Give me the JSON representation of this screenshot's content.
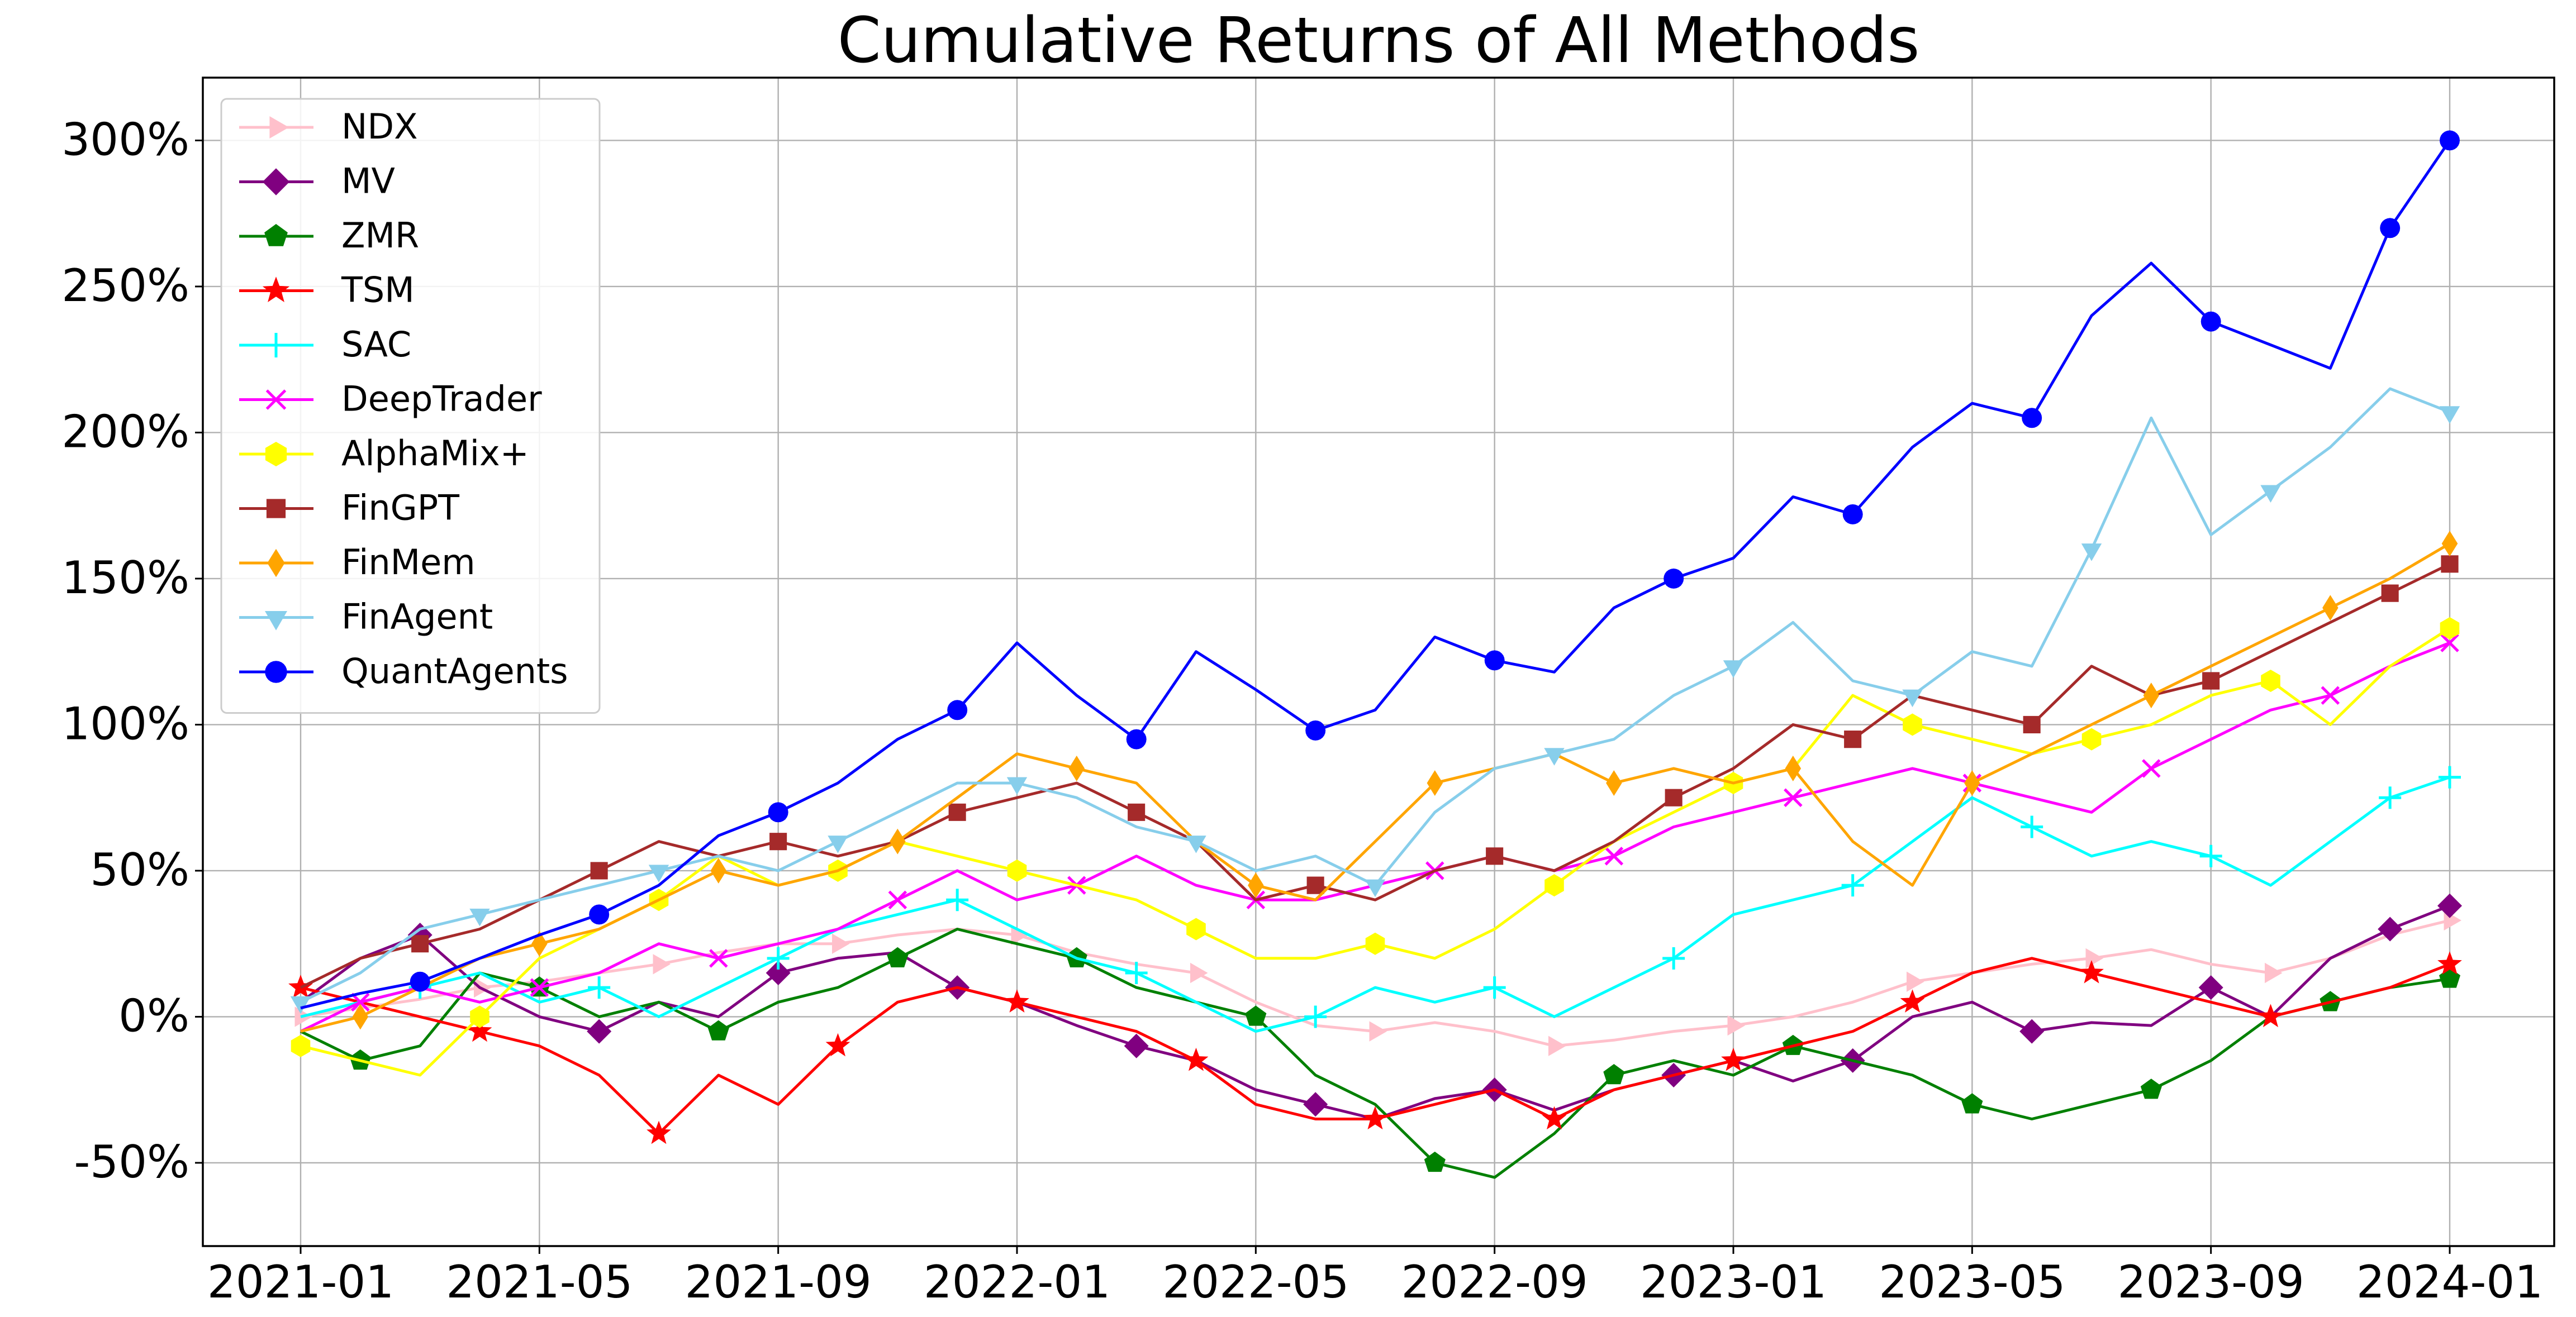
{
  "chart_data": {
    "type": "line",
    "title": "Cumulative Returns of All Methods",
    "x": [
      "2021-01",
      "2021-02",
      "2021-03",
      "2021-04",
      "2021-05",
      "2021-06",
      "2021-07",
      "2021-08",
      "2021-09",
      "2021-10",
      "2021-11",
      "2021-12",
      "2022-01",
      "2022-02",
      "2022-03",
      "2022-04",
      "2022-05",
      "2022-06",
      "2022-07",
      "2022-08",
      "2022-09",
      "2022-10",
      "2022-11",
      "2022-12",
      "2023-01",
      "2023-02",
      "2023-03",
      "2023-04",
      "2023-05",
      "2023-06",
      "2023-07",
      "2023-08",
      "2023-09",
      "2023-10",
      "2023-11",
      "2023-12",
      "2024-01"
    ],
    "xticks": [
      "2021-01",
      "2021-05",
      "2021-09",
      "2022-01",
      "2022-05",
      "2022-09",
      "2023-01",
      "2023-05",
      "2023-09",
      "2024-01"
    ],
    "ylim": [
      -78.5,
      321.5
    ],
    "yticks": [
      {
        "value": -50,
        "label": "-50%"
      },
      {
        "value": 0,
        "label": "0%"
      },
      {
        "value": 50,
        "label": "50%"
      },
      {
        "value": 100,
        "label": "100%"
      },
      {
        "value": 150,
        "label": "150%"
      },
      {
        "value": 200,
        "label": "200%"
      },
      {
        "value": 250,
        "label": "250%"
      },
      {
        "value": 300,
        "label": "300%"
      }
    ],
    "grid": true,
    "legend": "upper left",
    "series": [
      {
        "name": "NDX",
        "color": "#ffc0cb",
        "marker": "triangle-right",
        "values": [
          0,
          3,
          6,
          10,
          12,
          15,
          18,
          22,
          25,
          25,
          28,
          30,
          28,
          22,
          18,
          15,
          5,
          -3,
          -5,
          -2,
          -5,
          -10,
          -8,
          -5,
          -3,
          0,
          5,
          12,
          15,
          18,
          20,
          23,
          18,
          15,
          20,
          28,
          33
        ]
      },
      {
        "name": "MV",
        "color": "#800080",
        "marker": "diamond",
        "values": [
          5,
          20,
          28,
          10,
          0,
          -5,
          5,
          0,
          15,
          20,
          22,
          10,
          5,
          -3,
          -10,
          -15,
          -25,
          -30,
          -35,
          -28,
          -25,
          -32,
          -25,
          -20,
          -15,
          -22,
          -15,
          0,
          5,
          -5,
          -2,
          -3,
          10,
          0,
          20,
          30,
          38
        ]
      },
      {
        "name": "ZMR",
        "color": "#008000",
        "marker": "pentagon",
        "values": [
          -5,
          -15,
          -10,
          15,
          10,
          0,
          5,
          -5,
          5,
          10,
          20,
          30,
          25,
          20,
          10,
          5,
          0,
          -20,
          -30,
          -50,
          -55,
          -40,
          -20,
          -15,
          -20,
          -10,
          -15,
          -20,
          -30,
          -35,
          -30,
          -25,
          -15,
          0,
          5,
          10,
          13
        ]
      },
      {
        "name": "TSM",
        "color": "#ff0000",
        "marker": "star",
        "values": [
          10,
          5,
          0,
          -5,
          -10,
          -20,
          -40,
          -20,
          -30,
          -10,
          5,
          10,
          5,
          0,
          -5,
          -15,
          -30,
          -35,
          -35,
          -30,
          -25,
          -35,
          -25,
          -20,
          -15,
          -10,
          -5,
          5,
          15,
          20,
          15,
          10,
          5,
          0,
          5,
          10,
          18
        ]
      },
      {
        "name": "SAC",
        "color": "#00ffff",
        "marker": "plus",
        "values": [
          0,
          5,
          10,
          15,
          5,
          10,
          0,
          10,
          20,
          30,
          35,
          40,
          30,
          20,
          15,
          5,
          -5,
          0,
          10,
          5,
          10,
          0,
          10,
          20,
          35,
          40,
          45,
          60,
          75,
          65,
          55,
          60,
          55,
          45,
          60,
          75,
          82
        ]
      },
      {
        "name": "DeepTrader",
        "color": "#ff00ff",
        "marker": "x",
        "values": [
          -5,
          5,
          10,
          5,
          10,
          15,
          25,
          20,
          25,
          30,
          40,
          50,
          40,
          45,
          55,
          45,
          40,
          40,
          45,
          50,
          55,
          50,
          55,
          65,
          70,
          75,
          80,
          85,
          80,
          75,
          70,
          85,
          95,
          105,
          110,
          120,
          128
        ]
      },
      {
        "name": "AlphaMix+",
        "color": "#ffff00",
        "marker": "hexagon",
        "values": [
          -10,
          -15,
          -20,
          0,
          20,
          30,
          40,
          55,
          45,
          50,
          60,
          55,
          50,
          45,
          40,
          30,
          20,
          20,
          25,
          20,
          30,
          45,
          60,
          70,
          80,
          85,
          110,
          100,
          95,
          90,
          95,
          100,
          110,
          115,
          100,
          120,
          133
        ]
      },
      {
        "name": "FinGPT",
        "color": "#a52a2a",
        "marker": "square",
        "values": [
          10,
          20,
          25,
          30,
          40,
          50,
          60,
          55,
          60,
          55,
          60,
          70,
          75,
          80,
          70,
          60,
          40,
          45,
          40,
          50,
          55,
          50,
          60,
          75,
          85,
          100,
          95,
          110,
          105,
          100,
          120,
          110,
          115,
          125,
          135,
          145,
          155
        ]
      },
      {
        "name": "FinMem",
        "color": "#ffa500",
        "marker": "thin-diamond",
        "values": [
          -5,
          0,
          10,
          20,
          25,
          30,
          40,
          50,
          45,
          50,
          60,
          75,
          90,
          85,
          80,
          60,
          45,
          40,
          60,
          80,
          85,
          90,
          80,
          85,
          80,
          85,
          60,
          45,
          80,
          90,
          100,
          110,
          120,
          130,
          140,
          150,
          162
        ]
      },
      {
        "name": "FinAgent",
        "color": "#87ceeb",
        "marker": "triangle-down",
        "values": [
          5,
          15,
          30,
          35,
          40,
          45,
          50,
          55,
          50,
          60,
          70,
          80,
          80,
          75,
          65,
          60,
          50,
          55,
          45,
          70,
          85,
          90,
          95,
          110,
          120,
          135,
          115,
          110,
          125,
          120,
          160,
          205,
          165,
          180,
          195,
          215,
          207
        ]
      },
      {
        "name": "QuantAgents",
        "color": "#0000ff",
        "marker": "circle",
        "values": [
          3,
          8,
          12,
          20,
          28,
          35,
          45,
          62,
          70,
          80,
          95,
          105,
          128,
          110,
          95,
          125,
          112,
          98,
          105,
          130,
          122,
          118,
          140,
          150,
          157,
          178,
          172,
          195,
          210,
          205,
          240,
          258,
          238,
          230,
          222,
          270,
          300
        ]
      }
    ]
  }
}
